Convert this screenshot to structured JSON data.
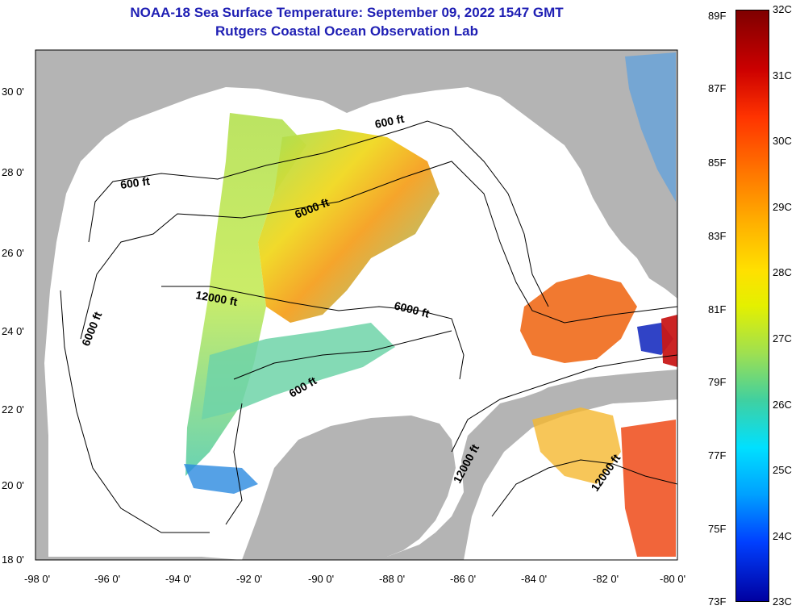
{
  "header": {
    "title_line1": "NOAA-18 Sea Surface Temperature:  September 09, 2022 1547 GMT",
    "title_line2": "Rutgers Coastal Ocean Observation Lab"
  },
  "map": {
    "lon_range": [
      -98,
      -80
    ],
    "lat_range": [
      18,
      31
    ],
    "lon_ticks": [
      "-98 0'",
      "-96 0'",
      "-94 0'",
      "-92 0'",
      "-90 0'",
      "-88 0'",
      "-86 0'",
      "-84 0'",
      "-82 0'",
      "-80 0'"
    ],
    "lat_ticks": [
      "18 0'",
      "20 0'",
      "22 0'",
      "24 0'",
      "26 0'",
      "28 0'",
      "30 0'"
    ],
    "contour_labels": [
      "600 ft",
      "600 ft",
      "6000 ft",
      "6000 ft",
      "12000 ft",
      "6000 ft",
      "600 ft",
      "12000 ft",
      "12000 ft"
    ],
    "colors": {
      "land": "#b4b4b4",
      "ocean_no_data": "#ffffff",
      "contour": "#000000"
    }
  },
  "colorbar": {
    "celsius_labels": [
      "32C",
      "31C",
      "30C",
      "29C",
      "28C",
      "27C",
      "26C",
      "25C",
      "24C",
      "23C"
    ],
    "fahrenheit_labels": [
      "89F",
      "87F",
      "85F",
      "83F",
      "81F",
      "79F",
      "77F",
      "75F",
      "73F"
    ],
    "range_c": [
      23,
      32
    ],
    "range_f": [
      73,
      89
    ]
  }
}
